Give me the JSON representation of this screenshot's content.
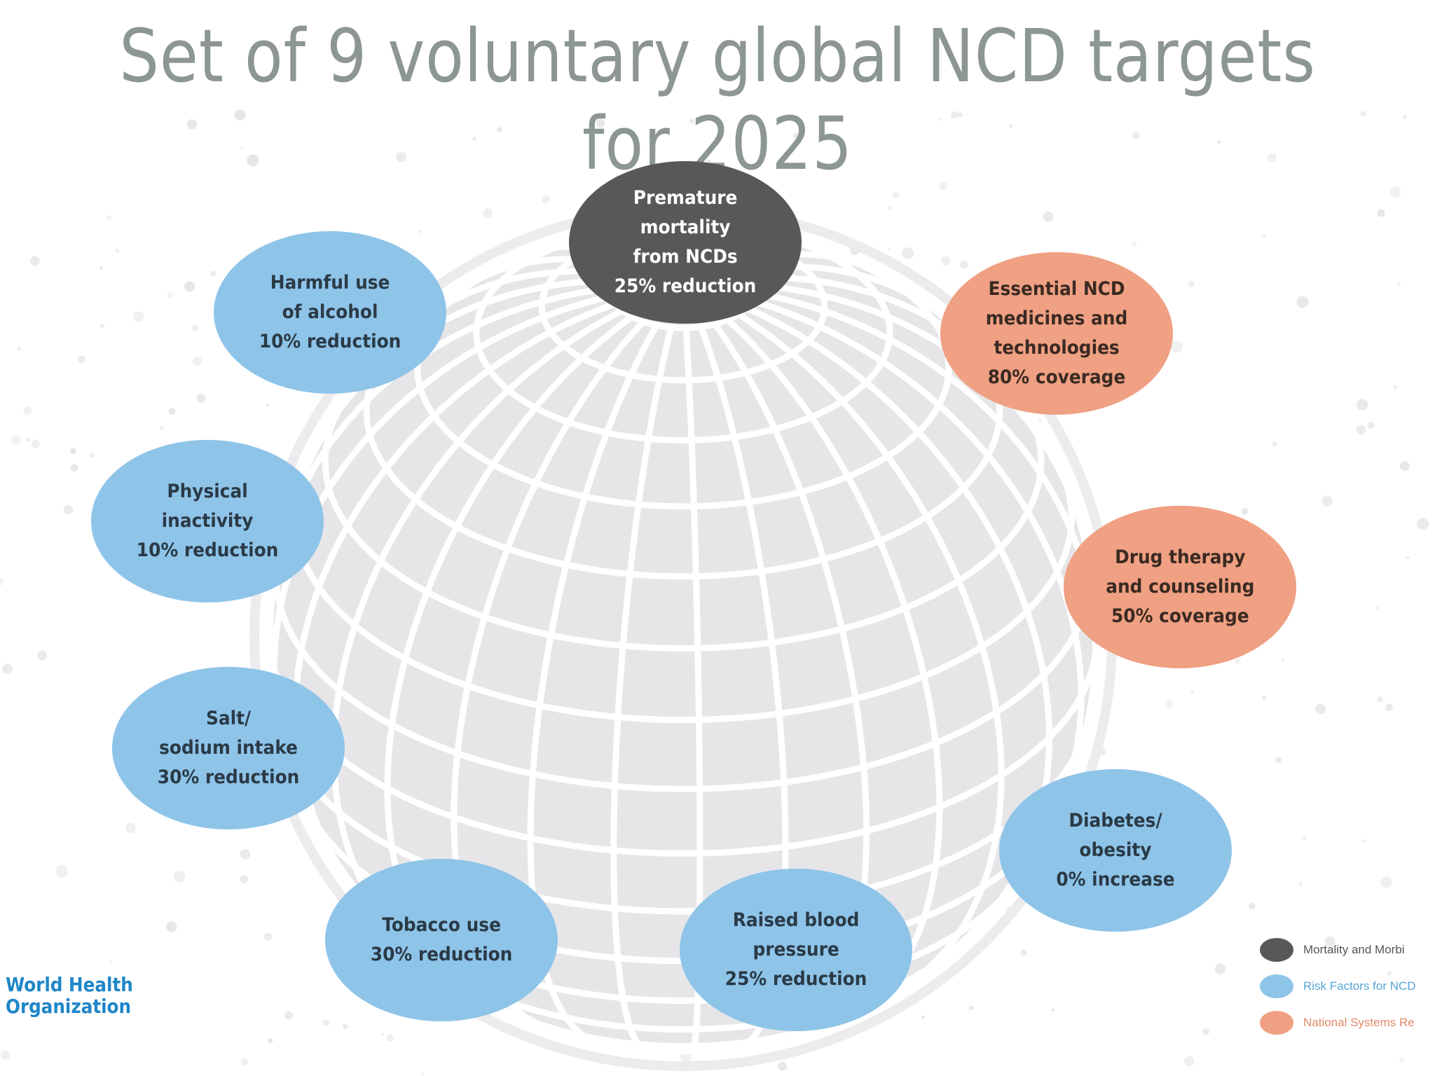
{
  "title": "Set of 9 voluntary global NCD targets for 2025",
  "colors": {
    "mortality": "#58585a",
    "risk_factors": "#8fc4e9",
    "national_systems": "#f0a083",
    "globe": "#e6e6e9",
    "title_text": "#8c9694",
    "logo_text": "#1e86c8"
  },
  "targets": [
    {
      "id": "premature-mortality",
      "category": "mortality",
      "text": "Premature\nmortality\nfrom NCDs\n25% reduction"
    },
    {
      "id": "alcohol",
      "category": "risk_factors",
      "text": "Harmful use\nof alcohol\n10% reduction"
    },
    {
      "id": "essential-medicines",
      "category": "national_systems",
      "text": "Essential NCD\nmedicines and\ntechnologies\n80% coverage"
    },
    {
      "id": "physical-inactivity",
      "category": "risk_factors",
      "text": "Physical\ninactivity\n10% reduction"
    },
    {
      "id": "drug-therapy",
      "category": "national_systems",
      "text": "Drug therapy\nand counseling\n50% coverage"
    },
    {
      "id": "salt",
      "category": "risk_factors",
      "text": "Salt/\nsodium intake\n30% reduction"
    },
    {
      "id": "diabetes",
      "category": "risk_factors",
      "text": "Diabetes/\nobesity\n0% increase"
    },
    {
      "id": "tobacco",
      "category": "risk_factors",
      "text": "Tobacco use\n30% reduction"
    },
    {
      "id": "blood-pressure",
      "category": "risk_factors",
      "text": "Raised blood\npressure\n25% reduction"
    }
  ],
  "legend": [
    {
      "category": "mortality",
      "label": "Mortality and Morbi"
    },
    {
      "category": "risk_factors",
      "label": "Risk Factors for NCD"
    },
    {
      "category": "national_systems",
      "label": "National Systems Re"
    }
  ],
  "logo": {
    "line1": "World Health",
    "line2": "Organization"
  }
}
